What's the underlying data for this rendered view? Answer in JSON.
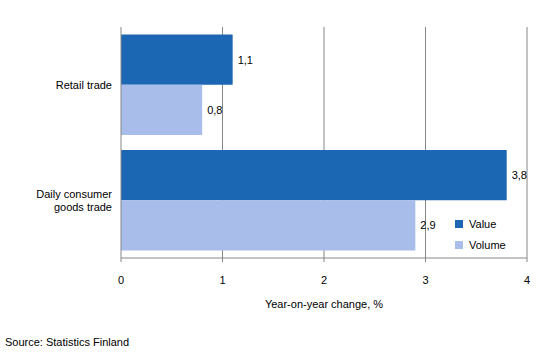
{
  "chart_data": {
    "type": "bar",
    "orientation": "horizontal",
    "categories": [
      "Retail trade",
      "Daily consumer goods trade"
    ],
    "series": [
      {
        "name": "Value",
        "color": "#1c67b4",
        "values": [
          1.1,
          3.8
        ],
        "value_labels": [
          "1,1",
          "3,8"
        ]
      },
      {
        "name": "Volume",
        "color": "#a9bdea",
        "values": [
          0.8,
          2.9
        ],
        "value_labels": [
          "0,8",
          "2,9"
        ]
      }
    ],
    "xlim": [
      0,
      4
    ],
    "xticks": [
      0,
      1,
      2,
      3,
      4
    ],
    "x_label": "Year-on-year change, %",
    "source": "Source: Statistics Finland",
    "grid": true,
    "legend": "lower right",
    "data_labels": true
  }
}
